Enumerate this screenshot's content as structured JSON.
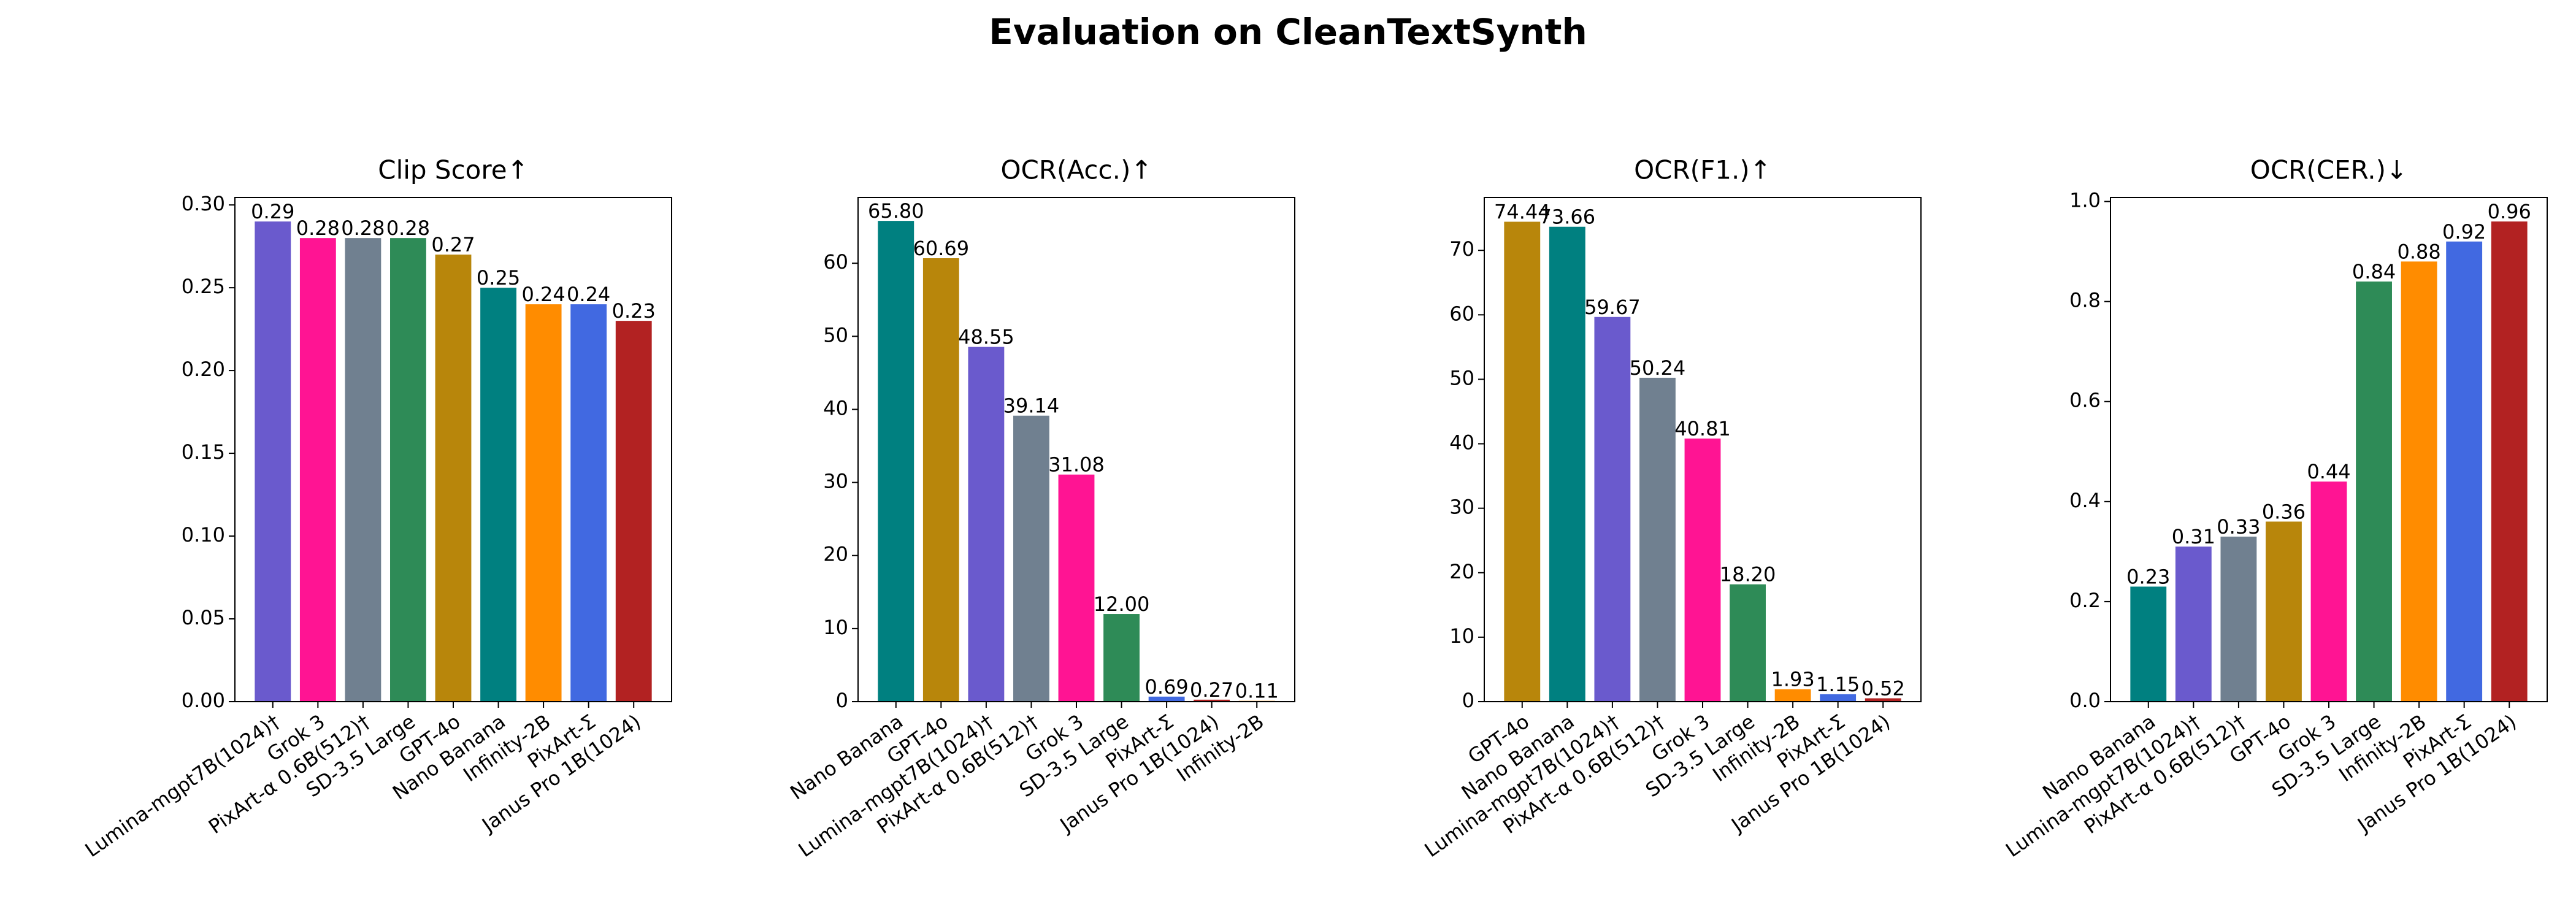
{
  "title": "Evaluation on CleanTextSynth",
  "chart_data": [
    {
      "type": "bar",
      "title": "Clip Score↑",
      "categories": [
        "Lumina-mgpt7B(1024)†",
        "Grok 3",
        "PixArt-α 0.6B(512)†",
        "SD-3.5 Large",
        "GPT-4o",
        "Nano Banana",
        "Infinity-2B",
        "PixArt-Σ",
        "Janus Pro 1B(1024)"
      ],
      "values": [
        0.29,
        0.28,
        0.28,
        0.28,
        0.27,
        0.25,
        0.24,
        0.24,
        0.23
      ],
      "colors": [
        "#6a5acd",
        "#ff1493",
        "#708090",
        "#2e8b57",
        "#b8860b",
        "#008080",
        "#ff8c00",
        "#4169e1",
        "#b22222"
      ],
      "ylim": [
        0,
        0.3045
      ],
      "yticks": [
        {
          "value": 0,
          "label": "0.00"
        },
        0.05,
        {
          "value": 0.1,
          "label": "0.10"
        },
        0.15,
        {
          "value": 0.2,
          "label": "0.20"
        },
        0.25,
        {
          "value": 0.3,
          "label": "0.30"
        }
      ]
    },
    {
      "type": "bar",
      "title": "OCR(Acc.)↑",
      "categories": [
        "Nano Banana",
        "GPT-4o",
        "Lumina-mgpt7B(1024)†",
        "PixArt-α 0.6B(512)†",
        "Grok 3",
        "SD-3.5 Large",
        "PixArt-Σ",
        "Janus Pro 1B(1024)",
        "Infinity-2B"
      ],
      "values": [
        65.8,
        60.69,
        48.55,
        39.14,
        31.08,
        12,
        0.69,
        0.27,
        0.11
      ],
      "value_labels": [
        "65.80",
        "60.69",
        "48.55",
        "39.14",
        "31.08",
        "12.00",
        "0.69",
        "0.27",
        "0.11"
      ],
      "colors": [
        "#008080",
        "#b8860b",
        "#6a5acd",
        "#708090",
        "#ff1493",
        "#2e8b57",
        "#4169e1",
        "#b22222",
        "#ff8c00"
      ],
      "ylim": [
        0,
        69.0
      ],
      "yticks": [
        0,
        10,
        20,
        30,
        40,
        50,
        60
      ]
    },
    {
      "type": "bar",
      "title": "OCR(F1.)↑",
      "categories": [
        "GPT-4o",
        "Nano Banana",
        "Lumina-mgpt7B(1024)†",
        "PixArt-α 0.6B(512)†",
        "Grok 3",
        "SD-3.5 Large",
        "Infinity-2B",
        "PixArt-Σ",
        "Janus Pro 1B(1024)"
      ],
      "values": [
        74.44,
        73.66,
        59.67,
        50.24,
        40.81,
        18.2,
        1.93,
        1.15,
        0.52
      ],
      "value_labels": [
        "74.44",
        "73.66",
        "59.67",
        "50.24",
        "40.81",
        "18.20",
        "1.93",
        "1.15",
        "0.52"
      ],
      "colors": [
        "#b8860b",
        "#008080",
        "#6a5acd",
        "#708090",
        "#ff1493",
        "#2e8b57",
        "#ff8c00",
        "#4169e1",
        "#b22222"
      ],
      "ylim": [
        0,
        78.2
      ],
      "yticks": [
        0,
        10,
        20,
        30,
        40,
        50,
        60,
        70
      ]
    },
    {
      "type": "bar",
      "title": "OCR(CER.)↓",
      "categories": [
        "Nano Banana",
        "Lumina-mgpt7B(1024)†",
        "PixArt-α 0.6B(512)†",
        "GPT-4o",
        "Grok 3",
        "SD-3.5 Large",
        "Infinity-2B",
        "PixArt-Σ",
        "Janus Pro 1B(1024)"
      ],
      "values": [
        0.23,
        0.31,
        0.33,
        0.36,
        0.44,
        0.84,
        0.88,
        0.92,
        0.96
      ],
      "colors": [
        "#008080",
        "#6a5acd",
        "#708090",
        "#b8860b",
        "#ff1493",
        "#2e8b57",
        "#ff8c00",
        "#4169e1",
        "#b22222"
      ],
      "ylim": [
        0,
        1.008
      ],
      "yticks": [
        {
          "value": 0,
          "label": "0.0"
        },
        0.2,
        0.4,
        0.6,
        0.8,
        {
          "value": 1,
          "label": "1.0"
        }
      ]
    }
  ]
}
